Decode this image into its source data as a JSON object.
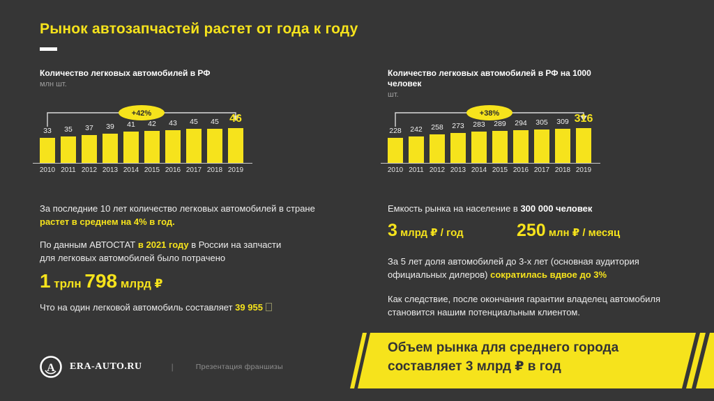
{
  "slide": {
    "title": "Рынок автозапчастей растет от года к году",
    "bg_color": "#363636",
    "accent_color": "#F6E31C"
  },
  "chart_data": [
    {
      "type": "bar",
      "title": "Количество легковых автомобилей в РФ",
      "unit_label": "млн шт.",
      "categories": [
        "2010",
        "2011",
        "2012",
        "2013",
        "2014",
        "2015",
        "2016",
        "2017",
        "2018",
        "2019"
      ],
      "values": [
        33,
        35,
        37,
        39,
        41,
        42,
        43,
        45,
        45,
        46
      ],
      "growth_badge": "+42%",
      "bar_color": "#F6E31C",
      "highlight_last_value": 46,
      "ylim": [
        0,
        46
      ],
      "grid": false,
      "legend": false
    },
    {
      "type": "bar",
      "title": "Количество легковых автомобилей в РФ на 1000 человек",
      "unit_label": "шт.",
      "categories": [
        "2010",
        "2011",
        "2012",
        "2013",
        "2014",
        "2015",
        "2016",
        "2017",
        "2018",
        "2019"
      ],
      "values": [
        228,
        242,
        258,
        273,
        283,
        289,
        294,
        305,
        309,
        316
      ],
      "growth_badge": "+38%",
      "bar_color": "#F6E31C",
      "highlight_last_value": 316,
      "ylim": [
        0,
        316
      ],
      "grid": false,
      "legend": false
    }
  ],
  "left_column": {
    "para1_line1": "За последние 10 лет количество легковых автомобилей в стране",
    "para1_line2": "растет в среднем на 4% в год.",
    "para2_pre": "По данным АВТОСТАТ ",
    "para2_highlight": "в 2021 году",
    "para2_post": " в России на запчасти для легковых автомобилей было потрачено",
    "figure_num1": "1",
    "figure_unit1": " трлн ",
    "figure_num2": "798",
    "figure_unit2": " млрд ₽",
    "para3_pre": "Что на один легковой автомобиль составляет ",
    "para3_value": "39 955",
    "para3_glyph": "□"
  },
  "right_column": {
    "capacity_pre": "Емкость рынка на население в ",
    "capacity_bold": "300 000 человек",
    "rate_year_num": "3",
    "rate_year_unit": " млрд ₽ / год",
    "rate_month_num": "250",
    "rate_month_unit": " млн ₽ / месяц",
    "para2_pre": "За 5 лет доля автомобилей до 3-х лет (основная аудитория официальных дилеров) ",
    "para2_highlight": "сократилась вдвое до 3%",
    "para3": "Как следствие, после окончания гарантии владелец автомобиля становится нашим потенциальным клиентом."
  },
  "footer": {
    "brand": "ERA-AUTO.RU",
    "divider": "|",
    "caption": "Презентация франшизы"
  },
  "banner": {
    "line1": "Объем рынка для среднего города",
    "line2": "составляет 3 млрд ₽ в год"
  }
}
